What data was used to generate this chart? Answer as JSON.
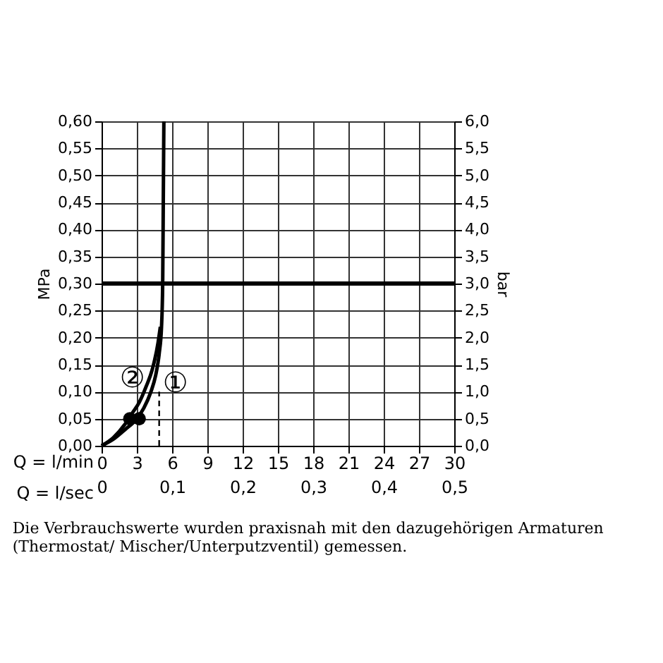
{
  "chart_data": {
    "type": "line",
    "xlabel": "Q = l/min",
    "x2label": "Q = l/sec",
    "ylabel": "MPa",
    "y2label": "bar",
    "xlim": [
      0,
      30
    ],
    "xticks": [
      0,
      3,
      6,
      9,
      12,
      15,
      18,
      21,
      24,
      27,
      30
    ],
    "x2lim": [
      0,
      0.5
    ],
    "x2ticks": [
      0,
      {
        "value": 0.1,
        "label": "0,1"
      },
      {
        "value": 0.2,
        "label": "0,2"
      },
      {
        "value": 0.3,
        "label": "0,3"
      },
      {
        "value": 0.4,
        "label": "0,4"
      },
      {
        "value": 0.5,
        "label": "0,5"
      }
    ],
    "ylim": [
      0,
      0.6
    ],
    "yticks": [
      {
        "value": 0,
        "label": "0,00"
      },
      {
        "value": 0.05,
        "label": "0,05"
      },
      {
        "value": 0.1,
        "label": "0,10"
      },
      {
        "value": 0.15,
        "label": "0,15"
      },
      {
        "value": 0.2,
        "label": "0,20"
      },
      {
        "value": 0.25,
        "label": "0,25"
      },
      {
        "value": 0.3,
        "label": "0,30"
      },
      {
        "value": 0.35,
        "label": "0,35"
      },
      {
        "value": 0.4,
        "label": "0,40"
      },
      {
        "value": 0.45,
        "label": "0,45"
      },
      {
        "value": 0.5,
        "label": "0,50"
      },
      {
        "value": 0.55,
        "label": "0,55"
      },
      {
        "value": 0.6,
        "label": "0,60"
      }
    ],
    "y2lim": [
      0,
      6
    ],
    "y2ticks": [
      {
        "value": 0,
        "label": "0,0"
      },
      {
        "value": 0.5,
        "label": "0,5"
      },
      {
        "value": 1,
        "label": "1,0"
      },
      {
        "value": 1.5,
        "label": "1,5"
      },
      {
        "value": 2,
        "label": "2,0"
      },
      {
        "value": 2.5,
        "label": "2,5"
      },
      {
        "value": 3,
        "label": "3,0"
      },
      {
        "value": 3.5,
        "label": "3,5"
      },
      {
        "value": 4,
        "label": "4,0"
      },
      {
        "value": 4.5,
        "label": "4,5"
      },
      {
        "value": 5,
        "label": "5,0"
      },
      {
        "value": 5.5,
        "label": "5,5"
      },
      {
        "value": 6,
        "label": "6,0"
      }
    ],
    "grid": true,
    "line_style": "solid",
    "ref_lines": [
      {
        "axis": "y",
        "value": 0.3,
        "color": "#000000"
      }
    ],
    "series": [
      {
        "name": "①",
        "color": "#000000",
        "x": [
          0,
          1,
          2,
          3,
          3.6,
          4.2,
          4.6,
          4.9,
          5.1,
          5.2,
          5.25,
          5.3
        ],
        "values": [
          0,
          0.012,
          0.03,
          0.05,
          0.07,
          0.1,
          0.13,
          0.17,
          0.22,
          0.3,
          0.45,
          0.6
        ]
      },
      {
        "name": "②",
        "color": "#000000",
        "x": [
          0,
          1,
          2,
          2.6,
          3.2,
          3.8,
          4.3,
          4.8,
          5.0
        ],
        "values": [
          0,
          0.015,
          0.04,
          0.06,
          0.08,
          0.11,
          0.14,
          0.19,
          0.22
        ]
      },
      {
        "type": "line",
        "line_style": "dashed",
        "color": "#000000",
        "x": [
          4.9,
          4.9
        ],
        "values": [
          0,
          0.1
        ]
      },
      {
        "type": "scatter",
        "marker": "circle",
        "color": "#000000",
        "x": [
          2.4,
          3.2
        ],
        "values": [
          0.05,
          0.05
        ]
      }
    ],
    "annotations": [
      "Die Verbrauchswerte wurden praxisnah mit den dazugehörigen Armaturen (Thermostat/ Mischer/Unterputzventil) gemessen."
    ]
  }
}
